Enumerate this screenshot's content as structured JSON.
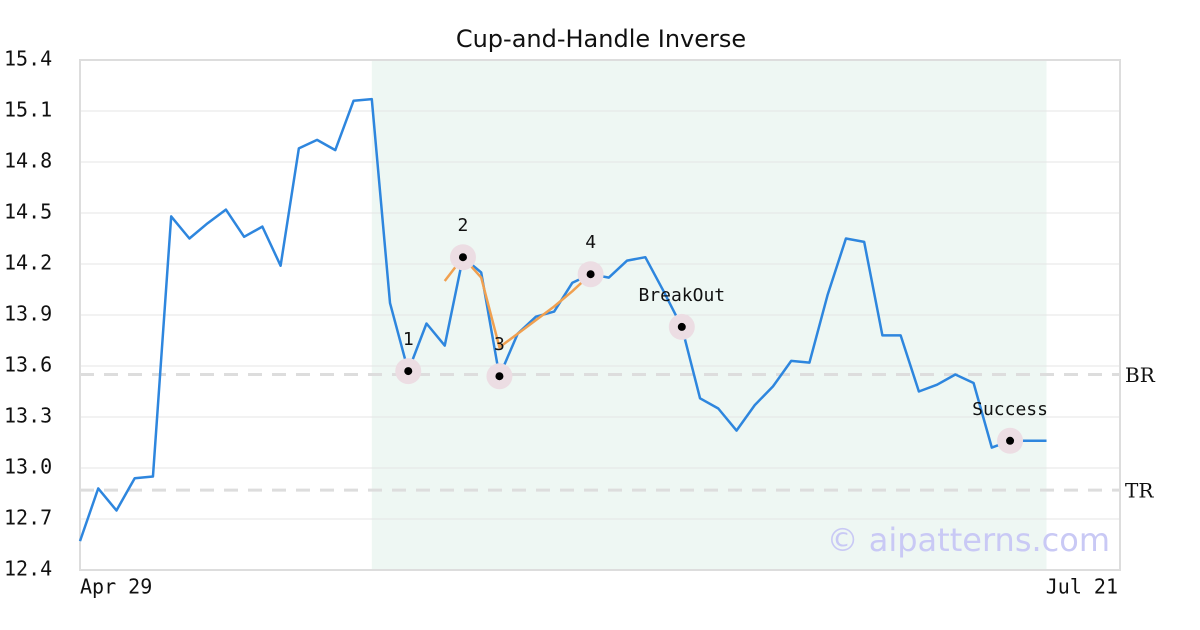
{
  "chart_data": {
    "type": "line",
    "title": "Cup-and-Handle Inverse",
    "categories": [
      "Apr 29",
      null,
      null,
      null,
      null,
      null,
      null,
      null,
      null,
      null,
      null,
      null,
      null,
      null,
      null,
      null,
      null,
      null,
      null,
      null,
      null,
      null,
      null,
      null,
      null,
      null,
      null,
      null,
      null,
      null,
      null,
      null,
      null,
      null,
      null,
      null,
      null,
      null,
      null,
      null,
      null,
      null,
      null,
      null,
      null,
      null,
      null,
      null,
      null,
      null,
      null,
      null,
      null,
      null,
      null,
      null,
      null,
      "Jul 21"
    ],
    "series": [
      {
        "color": "#2e86de",
        "values": [
          12.57,
          12.88,
          12.75,
          12.94,
          12.95,
          14.48,
          14.35,
          14.44,
          14.52,
          14.36,
          14.42,
          14.19,
          14.88,
          14.93,
          14.87,
          15.16,
          15.17,
          13.97,
          13.57,
          13.85,
          13.72,
          14.24,
          14.15,
          13.54,
          13.79,
          13.89,
          13.92,
          14.09,
          14.14,
          14.12,
          14.22,
          14.24,
          14.04,
          13.83,
          13.41,
          13.35,
          13.22,
          13.37,
          13.48,
          13.63,
          13.62,
          14.02,
          14.35,
          14.33,
          13.78,
          13.78,
          13.45,
          13.49,
          13.55,
          13.5,
          13.12,
          13.16,
          13.16,
          13.16,
          null,
          null,
          null,
          null
        ]
      },
      {
        "color": "#f0a050",
        "values": [
          null,
          null,
          null,
          null,
          null,
          null,
          null,
          null,
          null,
          null,
          null,
          null,
          null,
          null,
          null,
          null,
          null,
          null,
          13.57,
          null,
          14.1,
          14.24,
          14.12,
          13.71,
          13.79,
          13.87,
          13.95,
          14.04,
          14.14,
          null,
          null,
          null,
          null,
          null,
          null,
          null,
          null,
          null,
          null,
          null,
          null,
          null,
          null,
          null,
          null,
          null,
          null,
          null,
          null,
          null,
          null,
          null,
          null,
          null,
          null,
          null,
          null,
          null
        ]
      }
    ],
    "shaded_range": [
      16,
      53
    ],
    "shade_color": "#eef7f3",
    "reference_lines": [
      {
        "label": "BR",
        "value": 13.55
      },
      {
        "label": "TR",
        "value": 12.87
      }
    ],
    "annotations": [
      {
        "label": "1",
        "x": 18,
        "value": 13.57
      },
      {
        "label": "2",
        "x": 21,
        "value": 14.24
      },
      {
        "label": "3",
        "x": 23,
        "value": 13.54
      },
      {
        "label": "4",
        "x": 28,
        "value": 14.14
      },
      {
        "label": "BreakOut",
        "x": 33,
        "value": 13.83
      },
      {
        "label": "Success",
        "x": 51,
        "value": 13.16
      }
    ],
    "watermark": "© aipatterns.com",
    "ylim": [
      12.4,
      15.4
    ],
    "yticks": [
      {
        "value": 12.4,
        "label": "12.4"
      },
      {
        "value": 12.7,
        "label": "12.7"
      },
      {
        "value": 13.0,
        "label": "13.0"
      },
      {
        "value": 13.3,
        "label": "13.3"
      },
      {
        "value": 13.6,
        "label": "13.6"
      },
      {
        "value": 13.9,
        "label": "13.9"
      },
      {
        "value": 14.2,
        "label": "14.2"
      },
      {
        "value": 14.5,
        "label": "14.5"
      },
      {
        "value": 14.8,
        "label": "14.8"
      },
      {
        "value": 15.1,
        "label": "15.1"
      },
      {
        "value": 15.4,
        "label": "15.4"
      }
    ],
    "grid": true
  }
}
